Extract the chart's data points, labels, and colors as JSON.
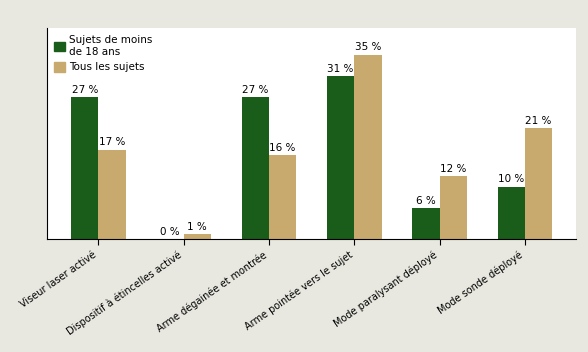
{
  "categories": [
    "Viseur laser activé",
    "Dispositif à étincelles activé",
    "Arme dégainée et montrée",
    "Arme pointée vers le sujet",
    "Mode paralysant déployé",
    "Mode sonde déployé"
  ],
  "series1_label": "Sujets de moins\nde 18 ans",
  "series2_label": "Tous les sujets",
  "series1_values": [
    27,
    0,
    27,
    31,
    6,
    10
  ],
  "series2_values": [
    17,
    1,
    16,
    35,
    12,
    21
  ],
  "series1_color": "#1a5c1a",
  "series2_color": "#c8a96e",
  "bar_width": 0.32,
  "ylim": [
    0,
    40
  ],
  "figure_bg": "#e8e8e0",
  "plot_bg": "#ffffff",
  "label_fontsize": 7.5,
  "tick_fontsize": 7.0,
  "legend_fontsize": 7.5
}
